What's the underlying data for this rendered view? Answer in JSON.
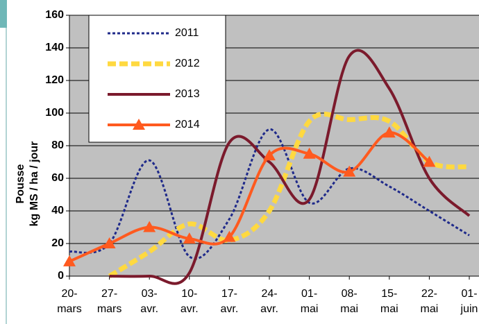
{
  "chart_data": {
    "type": "line",
    "y_label": [
      "Pousse",
      "kg MS / ha / jour"
    ],
    "categories": [
      [
        "20-",
        "mars"
      ],
      [
        "27-",
        "mars"
      ],
      [
        "03-",
        "avr."
      ],
      [
        "10-",
        "avr."
      ],
      [
        "17-",
        "avr."
      ],
      [
        "24-",
        "avr."
      ],
      [
        "01-",
        "mai"
      ],
      [
        "08-",
        "mai"
      ],
      [
        "15-",
        "mai"
      ],
      [
        "22-",
        "mai"
      ],
      [
        "01-",
        "juin"
      ]
    ],
    "ylim": [
      0,
      160
    ],
    "yticks": [
      0,
      20,
      40,
      60,
      80,
      100,
      120,
      140,
      160
    ],
    "grid": true,
    "legend": "top-left",
    "series": [
      {
        "name": "2011",
        "color": "#1f2a8a",
        "style": "dotted",
        "values": [
          15,
          20,
          71,
          12,
          35,
          90,
          45,
          66,
          55,
          40,
          25
        ]
      },
      {
        "name": "2012",
        "color": "#ffd940",
        "style": "dashed",
        "values": [
          null,
          0,
          15,
          32,
          22,
          40,
          95,
          96,
          95,
          70,
          67
        ]
      },
      {
        "name": "2013",
        "color": "#7b1a2c",
        "style": "solid",
        "values": [
          null,
          0,
          0,
          2,
          82,
          70,
          47,
          135,
          115,
          60,
          37
        ]
      },
      {
        "name": "2014",
        "color": "#ff5a1f",
        "style": "solid",
        "marker": "triangle",
        "values": [
          9,
          20,
          30,
          23,
          24,
          74,
          75,
          64,
          88,
          70,
          null
        ]
      }
    ]
  }
}
